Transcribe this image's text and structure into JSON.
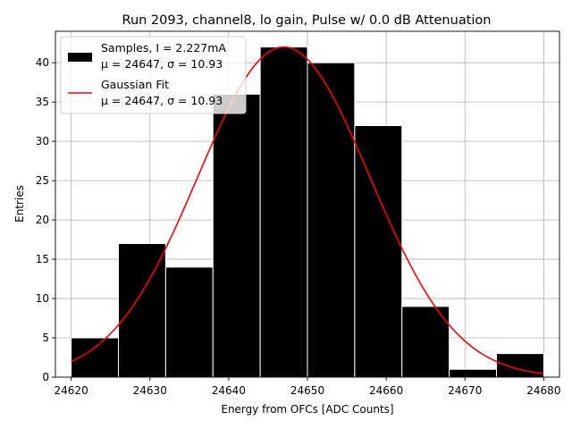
{
  "chart_data": {
    "type": "bar",
    "title": "Run 2093, channel8, lo gain, Pulse w/ 0.0 dB Attenuation",
    "xlabel": "Energy from OFCs [ADC Counts]",
    "ylabel": "Entries",
    "xlim": [
      24618,
      24682
    ],
    "ylim": [
      0,
      44
    ],
    "xticks": [
      24620,
      24630,
      24640,
      24650,
      24660,
      24670,
      24680
    ],
    "yticks": [
      0,
      5,
      10,
      15,
      20,
      25,
      30,
      35,
      40
    ],
    "grid": true,
    "legend_position": "top-left",
    "bin_edges": [
      24620,
      24626,
      24632,
      24638,
      24644,
      24650,
      24656,
      24662,
      24668,
      24674,
      24680
    ],
    "series": [
      {
        "name": "Samples, I = 2.227mA",
        "name_line2": "μ = 24647, σ = 10.93",
        "kind": "histogram",
        "values": [
          5,
          17,
          14,
          36,
          42,
          40,
          32,
          9,
          1,
          3
        ],
        "color": "#000000"
      },
      {
        "name": "Gaussian Fit",
        "name_line2": "μ = 24647, σ = 10.93",
        "kind": "line",
        "mu": 24647,
        "sigma": 10.93,
        "amplitude": 42,
        "x_range": [
          24620,
          24680
        ],
        "color": "#ff0000"
      }
    ]
  }
}
